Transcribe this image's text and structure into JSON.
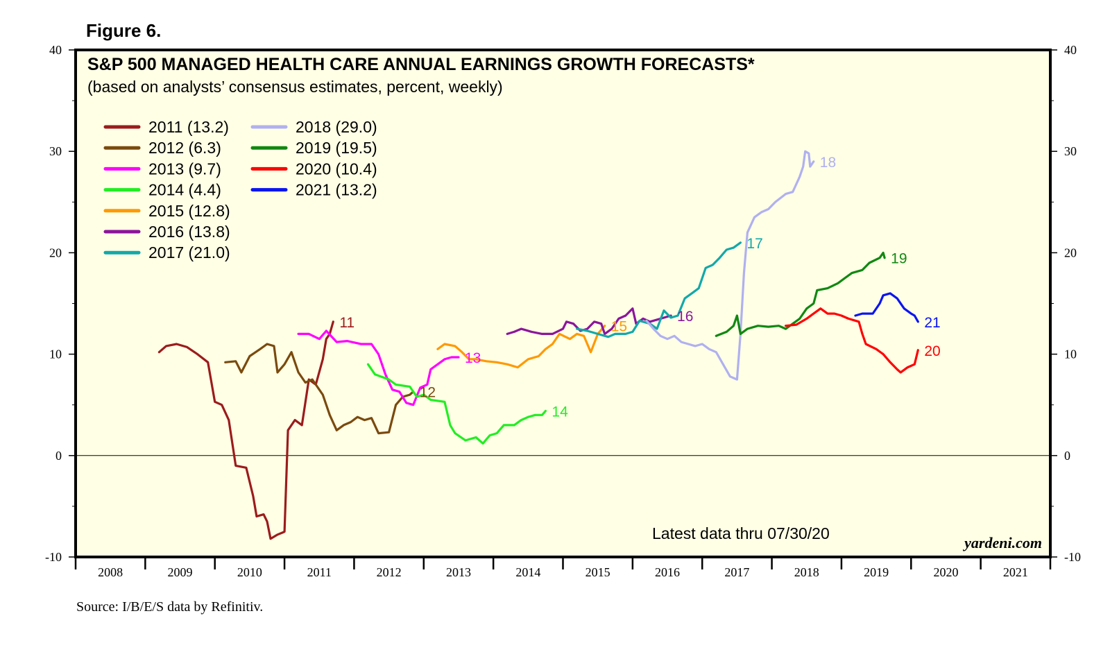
{
  "figure_label": "Figure 6.",
  "source": "Source: I/B/E/S data by Refinitiv.",
  "watermark": "yardeni.com",
  "latest_note": "Latest data thru  07/30/20",
  "colors": {
    "panel_bg": "#FFFFE6",
    "frame": "#000000",
    "y2011": "#9B1C1C",
    "y2012": "#7A4A0E",
    "y2013": "#FF00FF",
    "y2014": "#22EE22",
    "y2015": "#FF9900",
    "y2016": "#8B169B",
    "y2017": "#13A8A8",
    "y2018": "#B0B0F0",
    "y2019": "#118811",
    "y2020": "#FF0000",
    "y2021": "#0A14F0"
  },
  "chart_data": {
    "type": "line",
    "title": "S&P 500 MANAGED HEALTH CARE ANNUAL EARNINGS GROWTH FORECASTS*",
    "subtitle": "(based on analysts’ consensus estimates, percent, weekly)",
    "xlabel": "",
    "ylabel": "",
    "xlim": [
      2008,
      2022
    ],
    "ylim": [
      -10,
      40
    ],
    "yticks": [
      -10,
      0,
      10,
      20,
      30,
      40
    ],
    "ytick_labels": [
      "-10",
      "0",
      "10",
      "20",
      "30",
      "40"
    ],
    "xtick_labels": [
      "2008",
      "2009",
      "2010",
      "2011",
      "2012",
      "2013",
      "2014",
      "2015",
      "2016",
      "2017",
      "2018",
      "2019",
      "2020",
      "2021"
    ],
    "legend_position": "top-left",
    "series": [
      {
        "key": "y2011",
        "name": "2011 (13.2)",
        "end_label": "11",
        "points": [
          [
            2009.2,
            10.2
          ],
          [
            2009.3,
            10.8
          ],
          [
            2009.45,
            11.0
          ],
          [
            2009.6,
            10.7
          ],
          [
            2009.75,
            10.0
          ],
          [
            2009.9,
            9.2
          ],
          [
            2010.0,
            5.3
          ],
          [
            2010.1,
            5.0
          ],
          [
            2010.2,
            3.5
          ],
          [
            2010.3,
            -1.0
          ],
          [
            2010.45,
            -1.2
          ],
          [
            2010.55,
            -4.0
          ],
          [
            2010.6,
            -6.0
          ],
          [
            2010.7,
            -5.8
          ],
          [
            2010.75,
            -6.5
          ],
          [
            2010.8,
            -8.2
          ],
          [
            2010.9,
            -7.8
          ],
          [
            2010.97,
            -7.6
          ],
          [
            2011.0,
            -7.5
          ],
          [
            2011.05,
            2.5
          ],
          [
            2011.15,
            3.5
          ],
          [
            2011.25,
            3.0
          ],
          [
            2011.35,
            7.5
          ],
          [
            2011.45,
            7.0
          ],
          [
            2011.55,
            9.5
          ],
          [
            2011.6,
            11.5
          ],
          [
            2011.65,
            12.0
          ],
          [
            2011.7,
            13.2
          ]
        ]
      },
      {
        "key": "y2012",
        "name": "2012 (6.3)",
        "end_label": "12",
        "points": [
          [
            2010.15,
            9.2
          ],
          [
            2010.3,
            9.3
          ],
          [
            2010.38,
            8.2
          ],
          [
            2010.5,
            9.8
          ],
          [
            2010.65,
            10.5
          ],
          [
            2010.75,
            11.0
          ],
          [
            2010.85,
            10.8
          ],
          [
            2010.9,
            8.2
          ],
          [
            2011.0,
            9.0
          ],
          [
            2011.1,
            10.2
          ],
          [
            2011.2,
            8.2
          ],
          [
            2011.3,
            7.2
          ],
          [
            2011.4,
            7.5
          ],
          [
            2011.55,
            6.0
          ],
          [
            2011.65,
            4.0
          ],
          [
            2011.75,
            2.5
          ],
          [
            2011.85,
            3.0
          ],
          [
            2011.95,
            3.3
          ],
          [
            2012.05,
            3.8
          ],
          [
            2012.15,
            3.5
          ],
          [
            2012.25,
            3.7
          ],
          [
            2012.35,
            2.2
          ],
          [
            2012.5,
            2.3
          ],
          [
            2012.6,
            5.0
          ],
          [
            2012.7,
            5.8
          ],
          [
            2012.8,
            6.0
          ],
          [
            2012.85,
            6.3
          ]
        ]
      },
      {
        "key": "y2013",
        "name": "2013 (9.7)",
        "end_label": "13",
        "points": [
          [
            2011.2,
            12.0
          ],
          [
            2011.35,
            12.0
          ],
          [
            2011.5,
            11.5
          ],
          [
            2011.6,
            12.3
          ],
          [
            2011.75,
            11.2
          ],
          [
            2011.9,
            11.3
          ],
          [
            2012.1,
            11.0
          ],
          [
            2012.25,
            11.0
          ],
          [
            2012.35,
            10.0
          ],
          [
            2012.45,
            8.0
          ],
          [
            2012.55,
            6.5
          ],
          [
            2012.65,
            6.3
          ],
          [
            2012.75,
            5.2
          ],
          [
            2012.85,
            5.0
          ],
          [
            2012.95,
            6.7
          ],
          [
            2013.05,
            7.0
          ],
          [
            2013.1,
            8.5
          ],
          [
            2013.2,
            9.0
          ],
          [
            2013.3,
            9.5
          ],
          [
            2013.4,
            9.7
          ],
          [
            2013.5,
            9.7
          ]
        ]
      },
      {
        "key": "y2014",
        "name": "2014 (4.4)",
        "end_label": "14",
        "points": [
          [
            2012.2,
            9.0
          ],
          [
            2012.3,
            8.0
          ],
          [
            2012.5,
            7.5
          ],
          [
            2012.6,
            7.0
          ],
          [
            2012.8,
            6.8
          ],
          [
            2012.9,
            5.8
          ],
          [
            2013.0,
            6.0
          ],
          [
            2013.1,
            5.5
          ],
          [
            2013.3,
            5.3
          ],
          [
            2013.38,
            3.0
          ],
          [
            2013.45,
            2.2
          ],
          [
            2013.6,
            1.5
          ],
          [
            2013.75,
            1.8
          ],
          [
            2013.85,
            1.2
          ],
          [
            2013.95,
            2.0
          ],
          [
            2014.05,
            2.2
          ],
          [
            2014.15,
            3.0
          ],
          [
            2014.3,
            3.0
          ],
          [
            2014.4,
            3.5
          ],
          [
            2014.5,
            3.8
          ],
          [
            2014.6,
            4.0
          ],
          [
            2014.7,
            4.0
          ],
          [
            2014.75,
            4.4
          ]
        ]
      },
      {
        "key": "y2015",
        "name": "2015 (12.8)",
        "end_label": "15",
        "points": [
          [
            2013.2,
            10.5
          ],
          [
            2013.3,
            11.0
          ],
          [
            2013.45,
            10.8
          ],
          [
            2013.55,
            10.2
          ],
          [
            2013.65,
            9.5
          ],
          [
            2013.75,
            9.5
          ],
          [
            2013.9,
            9.3
          ],
          [
            2014.05,
            9.2
          ],
          [
            2014.2,
            9.0
          ],
          [
            2014.35,
            8.7
          ],
          [
            2014.5,
            9.5
          ],
          [
            2014.65,
            9.8
          ],
          [
            2014.75,
            10.5
          ],
          [
            2014.85,
            11.0
          ],
          [
            2014.95,
            12.0
          ],
          [
            2015.1,
            11.5
          ],
          [
            2015.2,
            12.0
          ],
          [
            2015.3,
            11.8
          ],
          [
            2015.4,
            10.2
          ],
          [
            2015.5,
            12.0
          ],
          [
            2015.6,
            12.8
          ]
        ]
      },
      {
        "key": "y2016",
        "name": "2016 (13.8)",
        "end_label": "16",
        "points": [
          [
            2014.2,
            12.0
          ],
          [
            2014.3,
            12.2
          ],
          [
            2014.4,
            12.5
          ],
          [
            2014.55,
            12.2
          ],
          [
            2014.7,
            12.0
          ],
          [
            2014.85,
            12.0
          ],
          [
            2015.0,
            12.5
          ],
          [
            2015.05,
            13.2
          ],
          [
            2015.15,
            13.0
          ],
          [
            2015.25,
            12.3
          ],
          [
            2015.35,
            12.5
          ],
          [
            2015.45,
            13.2
          ],
          [
            2015.55,
            13.0
          ],
          [
            2015.6,
            12.0
          ],
          [
            2015.7,
            12.5
          ],
          [
            2015.8,
            13.5
          ],
          [
            2015.9,
            13.8
          ],
          [
            2016.0,
            14.5
          ],
          [
            2016.05,
            13.0
          ],
          [
            2016.15,
            13.5
          ],
          [
            2016.25,
            13.2
          ],
          [
            2016.35,
            13.4
          ],
          [
            2016.45,
            13.6
          ],
          [
            2016.55,
            13.8
          ]
        ]
      },
      {
        "key": "y2017",
        "name": "2017 (21.0)",
        "end_label": "17",
        "points": [
          [
            2015.2,
            12.5
          ],
          [
            2015.35,
            12.3
          ],
          [
            2015.5,
            12.0
          ],
          [
            2015.65,
            11.7
          ],
          [
            2015.75,
            12.0
          ],
          [
            2015.9,
            12.0
          ],
          [
            2016.0,
            12.2
          ],
          [
            2016.1,
            13.3
          ],
          [
            2016.25,
            13.0
          ],
          [
            2016.35,
            12.5
          ],
          [
            2016.45,
            14.3
          ],
          [
            2016.55,
            13.6
          ],
          [
            2016.65,
            13.8
          ],
          [
            2016.75,
            15.5
          ],
          [
            2016.85,
            16.0
          ],
          [
            2016.95,
            16.5
          ],
          [
            2017.05,
            18.5
          ],
          [
            2017.15,
            18.8
          ],
          [
            2017.25,
            19.5
          ],
          [
            2017.35,
            20.3
          ],
          [
            2017.45,
            20.5
          ],
          [
            2017.55,
            21.0
          ]
        ]
      },
      {
        "key": "y2018",
        "name": "2018 (29.0)",
        "end_label": "18",
        "points": [
          [
            2016.2,
            13.3
          ],
          [
            2016.3,
            12.5
          ],
          [
            2016.4,
            11.8
          ],
          [
            2016.5,
            11.5
          ],
          [
            2016.6,
            11.8
          ],
          [
            2016.7,
            11.2
          ],
          [
            2016.8,
            11.0
          ],
          [
            2016.9,
            10.8
          ],
          [
            2017.0,
            11.0
          ],
          [
            2017.1,
            10.5
          ],
          [
            2017.2,
            10.2
          ],
          [
            2017.3,
            9.0
          ],
          [
            2017.4,
            7.8
          ],
          [
            2017.5,
            7.5
          ],
          [
            2017.55,
            12.0
          ],
          [
            2017.6,
            18.0
          ],
          [
            2017.65,
            22.0
          ],
          [
            2017.75,
            23.5
          ],
          [
            2017.85,
            24.0
          ],
          [
            2017.95,
            24.3
          ],
          [
            2018.05,
            25.0
          ],
          [
            2018.2,
            25.8
          ],
          [
            2018.3,
            26.0
          ],
          [
            2018.4,
            27.5
          ],
          [
            2018.45,
            28.5
          ],
          [
            2018.48,
            30.0
          ],
          [
            2018.53,
            29.8
          ],
          [
            2018.55,
            28.5
          ],
          [
            2018.6,
            29.0
          ]
        ]
      },
      {
        "key": "y2019",
        "name": "2019 (19.5)",
        "end_label": "19",
        "points": [
          [
            2017.2,
            11.8
          ],
          [
            2017.35,
            12.2
          ],
          [
            2017.45,
            12.8
          ],
          [
            2017.5,
            13.8
          ],
          [
            2017.55,
            12.0
          ],
          [
            2017.65,
            12.5
          ],
          [
            2017.8,
            12.8
          ],
          [
            2017.95,
            12.7
          ],
          [
            2018.1,
            12.8
          ],
          [
            2018.2,
            12.5
          ],
          [
            2018.3,
            13.0
          ],
          [
            2018.4,
            13.5
          ],
          [
            2018.5,
            14.5
          ],
          [
            2018.6,
            15.0
          ],
          [
            2018.65,
            16.3
          ],
          [
            2018.8,
            16.5
          ],
          [
            2018.95,
            17.0
          ],
          [
            2019.05,
            17.5
          ],
          [
            2019.15,
            18.0
          ],
          [
            2019.3,
            18.3
          ],
          [
            2019.4,
            19.0
          ],
          [
            2019.55,
            19.5
          ],
          [
            2019.6,
            20.0
          ],
          [
            2019.62,
            19.5
          ]
        ]
      },
      {
        "key": "y2020",
        "name": "2020 (10.4)",
        "end_label": "20",
        "points": [
          [
            2018.2,
            12.8
          ],
          [
            2018.35,
            12.9
          ],
          [
            2018.5,
            13.5
          ],
          [
            2018.6,
            14.0
          ],
          [
            2018.7,
            14.5
          ],
          [
            2018.8,
            14.0
          ],
          [
            2018.9,
            14.0
          ],
          [
            2019.0,
            13.8
          ],
          [
            2019.1,
            13.5
          ],
          [
            2019.25,
            13.2
          ],
          [
            2019.3,
            12.0
          ],
          [
            2019.35,
            11.0
          ],
          [
            2019.5,
            10.5
          ],
          [
            2019.6,
            10.0
          ],
          [
            2019.7,
            9.2
          ],
          [
            2019.8,
            8.5
          ],
          [
            2019.85,
            8.2
          ],
          [
            2019.95,
            8.7
          ],
          [
            2020.05,
            9.0
          ],
          [
            2020.1,
            10.4
          ]
        ]
      },
      {
        "key": "y2021",
        "name": "2021 (13.2)",
        "end_label": "21",
        "points": [
          [
            2019.2,
            13.8
          ],
          [
            2019.3,
            14.0
          ],
          [
            2019.45,
            14.0
          ],
          [
            2019.55,
            15.0
          ],
          [
            2019.6,
            15.8
          ],
          [
            2019.7,
            16.0
          ],
          [
            2019.8,
            15.5
          ],
          [
            2019.9,
            14.5
          ],
          [
            2020.0,
            14.0
          ],
          [
            2020.05,
            13.8
          ],
          [
            2020.1,
            13.2
          ]
        ]
      }
    ]
  }
}
